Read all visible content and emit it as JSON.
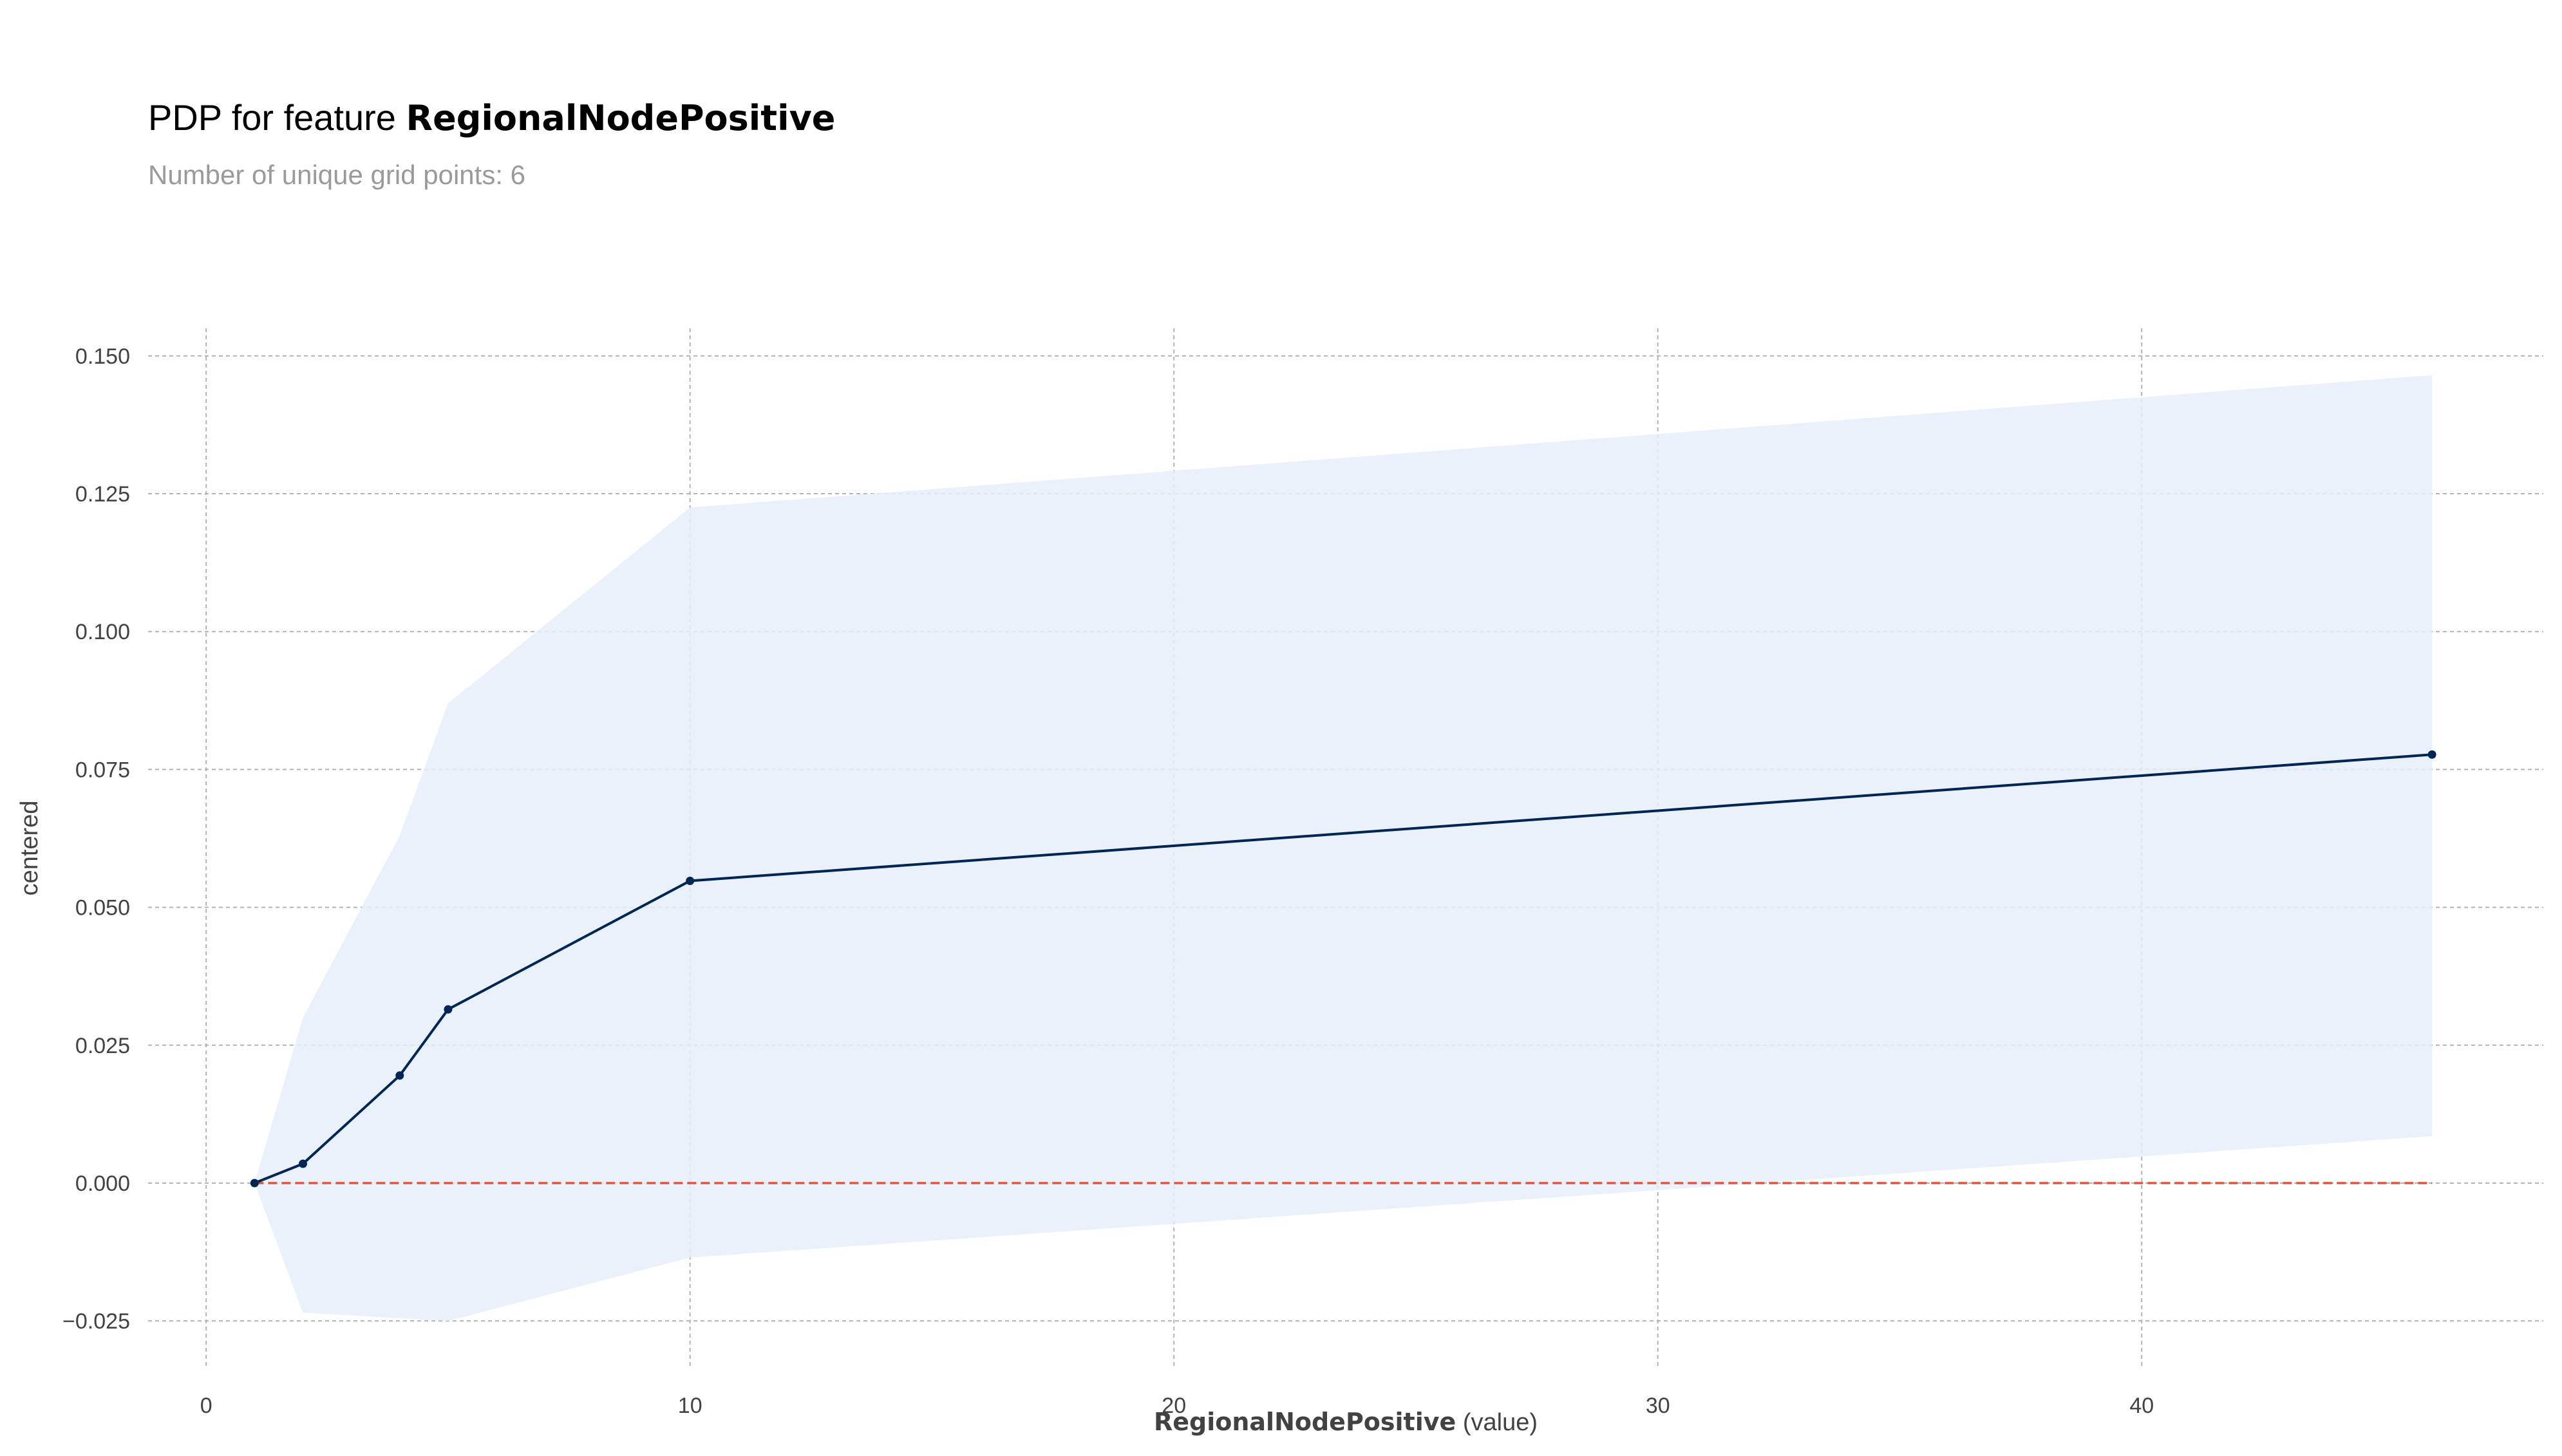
{
  "header": {
    "title_prefix": "PDP for feature",
    "feature_name": "RegionalNodePositive",
    "subtitle": "Number of unique grid points: 6"
  },
  "chart_data": {
    "type": "line",
    "x": [
      1,
      2,
      4,
      5,
      10,
      46
    ],
    "series": [
      {
        "values": [
          0.0,
          0.0035,
          0.0195,
          0.0315,
          0.0548,
          0.0777
        ],
        "color": "#002654"
      }
    ],
    "band": {
      "upper": [
        0.0,
        0.03,
        0.063,
        0.087,
        0.1225,
        0.1465
      ],
      "lower": [
        0.0,
        -0.0235,
        -0.0245,
        -0.025,
        -0.0135,
        0.0085
      ],
      "color": "#e7eff9"
    },
    "reference_line": {
      "y": 0.0,
      "color": "#e2543d",
      "style": "dashed"
    },
    "xlim": [
      -1.2,
      48.3
    ],
    "ylim": [
      -0.0335,
      0.155
    ],
    "xticks": [
      0,
      10,
      20,
      30,
      40
    ],
    "yticks": [
      -0.025,
      0.0,
      0.025,
      0.05,
      0.075,
      0.1,
      0.125,
      0.15
    ],
    "xtick_labels": [
      "0",
      "10",
      "20",
      "30",
      "40"
    ],
    "ytick_labels": [
      "−0.025",
      "0.000",
      "0.025",
      "0.050",
      "0.075",
      "0.100",
      "0.125",
      "0.150"
    ],
    "xlabel_bold": "RegionalNodePositive",
    "xlabel_suffix": " (value)",
    "ylabel": "centered",
    "grid": true,
    "grid_color": "#b3b3b3"
  }
}
